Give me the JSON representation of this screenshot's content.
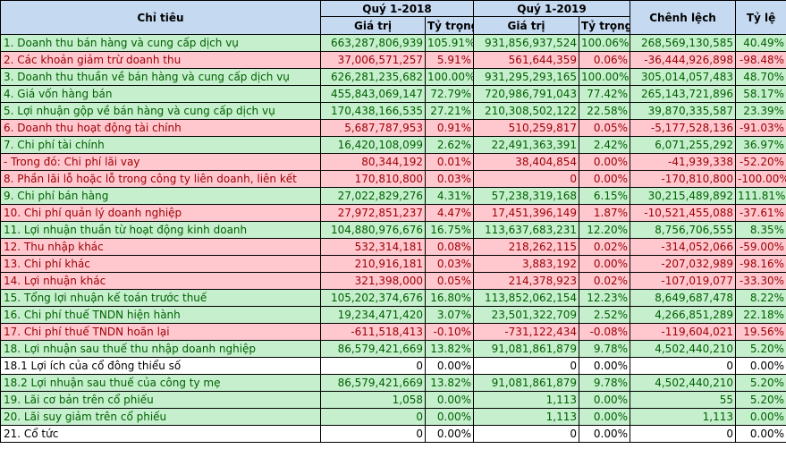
{
  "header": {
    "chi_tieu": "Chỉ tiêu",
    "q2018": "Quý 1-2018",
    "q2019": "Quý 1-2019",
    "chenh_lech": "Chênh lệch",
    "ty_le": "Tỷ lệ",
    "gia_tri": "Giá trị",
    "ty_trong": "Tỷ trọng"
  },
  "rows": [
    {
      "label": "1. Doanh thu bán hàng và cung cấp dịch vụ",
      "v2018": "663,287,806,939",
      "p2018": "105.91%",
      "v2019": "931,856,937,524",
      "p2019": "100.06%",
      "diff": "268,569,130,585",
      "ratio": "40.49%",
      "style": "g"
    },
    {
      "label": "2. Các khoản giảm trừ doanh thu",
      "v2018": "37,006,571,257",
      "p2018": "5.91%",
      "v2019": "561,644,359",
      "p2019": "0.06%",
      "diff": "-36,444,926,898",
      "ratio": "-98.48%",
      "style": "r"
    },
    {
      "label": "3. Doanh thu thuần về bán hàng và cung cấp dịch vụ",
      "v2018": "626,281,235,682",
      "p2018": "100.00%",
      "v2019": "931,295,293,165",
      "p2019": "100.00%",
      "diff": "305,014,057,483",
      "ratio": "48.70%",
      "style": "g"
    },
    {
      "label": "4. Giá vốn hàng bán",
      "v2018": "455,843,069,147",
      "p2018": "72.79%",
      "v2019": "720,986,791,043",
      "p2019": "77.42%",
      "diff": "265,143,721,896",
      "ratio": "58.17%",
      "style": "g"
    },
    {
      "label": "5. Lợi nhuận gộp về bán hàng và cung cấp dịch vụ",
      "v2018": "170,438,166,535",
      "p2018": "27.21%",
      "v2019": "210,308,502,122",
      "p2019": "22.58%",
      "diff": "39,870,335,587",
      "ratio": "23.39%",
      "style": "g"
    },
    {
      "label": "6. Doanh thu hoạt động tài chính",
      "v2018": "5,687,787,953",
      "p2018": "0.91%",
      "v2019": "510,259,817",
      "p2019": "0.05%",
      "diff": "-5,177,528,136",
      "ratio": "-91.03%",
      "style": "r"
    },
    {
      "label": "7. Chi phí tài chính",
      "v2018": "16,420,108,099",
      "p2018": "2.62%",
      "v2019": "22,491,363,391",
      "p2019": "2.42%",
      "diff": "6,071,255,292",
      "ratio": "36.97%",
      "style": "g"
    },
    {
      "label": " - Trong đó: Chi phí lãi vay",
      "v2018": "80,344,192",
      "p2018": "0.01%",
      "v2019": "38,404,854",
      "p2019": "0.00%",
      "diff": "-41,939,338",
      "ratio": "-52.20%",
      "style": "r"
    },
    {
      "label": "8. Phần lãi lỗ hoặc lỗ trong công ty liên doanh, liên kết",
      "v2018": "170,810,800",
      "p2018": "0.03%",
      "v2019": "0",
      "p2019": "0.00%",
      "diff": "-170,810,800",
      "ratio": "-100.00%",
      "style": "r"
    },
    {
      "label": "9. Chi phí bán hàng",
      "v2018": "27,022,829,276",
      "p2018": "4.31%",
      "v2019": "57,238,319,168",
      "p2019": "6.15%",
      "diff": "30,215,489,892",
      "ratio": "111.81%",
      "style": "g"
    },
    {
      "label": "10. Chi phí quản lý doanh nghiệp",
      "v2018": "27,972,851,237",
      "p2018": "4.47%",
      "v2019": "17,451,396,149",
      "p2019": "1.87%",
      "diff": "-10,521,455,088",
      "ratio": "-37.61%",
      "style": "r"
    },
    {
      "label": "11. Lợi nhuận thuần từ hoạt động kinh doanh",
      "v2018": "104,880,976,676",
      "p2018": "16.75%",
      "v2019": "113,637,683,231",
      "p2019": "12.20%",
      "diff": "8,756,706,555",
      "ratio": "8.35%",
      "style": "g"
    },
    {
      "label": "12. Thu nhập khác",
      "v2018": "532,314,181",
      "p2018": "0.08%",
      "v2019": "218,262,115",
      "p2019": "0.02%",
      "diff": "-314,052,066",
      "ratio": "-59.00%",
      "style": "r"
    },
    {
      "label": "13. Chi phí khác",
      "v2018": "210,916,181",
      "p2018": "0.03%",
      "v2019": "3,883,192",
      "p2019": "0.00%",
      "diff": "-207,032,989",
      "ratio": "-98.16%",
      "style": "r"
    },
    {
      "label": "14. Lợi nhuận khác",
      "v2018": "321,398,000",
      "p2018": "0.05%",
      "v2019": "214,378,923",
      "p2019": "0.02%",
      "diff": "-107,019,077",
      "ratio": "-33.30%",
      "style": "r"
    },
    {
      "label": "15. Tổng lợi nhuận kế toán trước thuế",
      "v2018": "105,202,374,676",
      "p2018": "16.80%",
      "v2019": "113,852,062,154",
      "p2019": "12.23%",
      "diff": "8,649,687,478",
      "ratio": "8.22%",
      "style": "g"
    },
    {
      "label": "16. Chi phí thuế TNDN hiện hành",
      "v2018": "19,234,471,420",
      "p2018": "3.07%",
      "v2019": "23,501,322,709",
      "p2019": "2.52%",
      "diff": "4,266,851,289",
      "ratio": "22.18%",
      "style": "g"
    },
    {
      "label": "17. Chi phí thuế TNDN hoãn lại",
      "v2018": "-611,518,413",
      "p2018": "-0.10%",
      "v2019": "-731,122,434",
      "p2019": "-0.08%",
      "diff": "-119,604,021",
      "ratio": "19.56%",
      "style": "r"
    },
    {
      "label": "18. Lợi nhuận sau thuế thu nhập doanh nghiệp",
      "v2018": "86,579,421,669",
      "p2018": "13.82%",
      "v2019": "91,081,861,879",
      "p2019": "9.78%",
      "diff": "4,502,440,210",
      "ratio": "5.20%",
      "style": "g"
    },
    {
      "label": "18.1 Lợi ích của cổ đông thiểu số",
      "v2018": "0",
      "p2018": "0.00%",
      "v2019": "0",
      "p2019": "0.00%",
      "diff": "0",
      "ratio": "0.00%",
      "style": "w"
    },
    {
      "label": "18.2 Lợi nhuận sau thuế của công ty mẹ",
      "v2018": "86,579,421,669",
      "p2018": "13.82%",
      "v2019": "91,081,861,879",
      "p2019": "9.78%",
      "diff": "4,502,440,210",
      "ratio": "5.20%",
      "style": "g"
    },
    {
      "label": "19. Lãi cơ bản trên cổ phiếu",
      "v2018": "1,058",
      "p2018": "0.00%",
      "v2019": "1,113",
      "p2019": "0.00%",
      "diff": "55",
      "ratio": "5.20%",
      "style": "g"
    },
    {
      "label": "20. Lãi suy giảm trên cổ phiếu",
      "v2018": "0",
      "p2018": "0.00%",
      "v2019": "1,113",
      "p2019": "0.00%",
      "diff": "1,113",
      "ratio": "0.00%",
      "style": "g"
    },
    {
      "label": "21. Cổ tức",
      "v2018": "0",
      "p2018": "0.00%",
      "v2019": "0",
      "p2019": "0.00%",
      "diff": "0",
      "ratio": "0.00%",
      "style": "w"
    }
  ]
}
